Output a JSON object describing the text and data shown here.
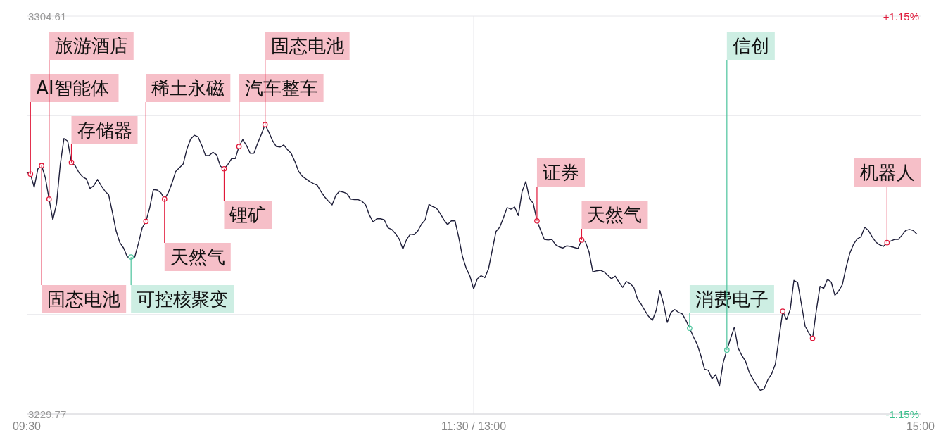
{
  "chart_data": {
    "type": "line",
    "categories": [
      "09:30",
      null,
      null,
      null,
      null,
      null,
      null,
      null,
      null,
      null,
      null,
      null,
      null,
      null,
      null,
      null,
      null,
      null,
      null,
      null,
      null,
      null,
      null,
      null,
      null,
      null,
      null,
      null,
      null,
      null,
      null,
      null,
      null,
      null,
      null,
      null,
      null,
      null,
      null,
      null,
      null,
      null,
      null,
      null,
      null,
      null,
      null,
      null,
      null,
      null,
      null,
      null,
      null,
      null,
      null,
      null,
      null,
      null,
      null,
      null,
      null,
      null,
      null,
      null,
      null,
      null,
      null,
      null,
      null,
      null,
      null,
      null,
      null,
      null,
      null,
      null,
      null,
      null,
      null,
      null,
      null,
      null,
      null,
      null,
      null,
      null,
      null,
      null,
      null,
      null,
      null,
      null,
      null,
      null,
      null,
      null,
      null,
      null,
      null,
      null,
      null,
      null,
      null,
      null,
      null,
      null,
      null,
      null,
      null,
      null,
      null,
      null,
      null,
      null,
      null,
      null,
      null,
      null,
      null,
      null,
      "11:30 / 13:00",
      null,
      null,
      null,
      null,
      null,
      null,
      null,
      null,
      null,
      null,
      null,
      null,
      null,
      null,
      null,
      null,
      null,
      null,
      null,
      null,
      null,
      null,
      null,
      null,
      null,
      null,
      null,
      null,
      null,
      null,
      null,
      null,
      null,
      null,
      null,
      null,
      null,
      null,
      null,
      null,
      null,
      null,
      null,
      null,
      null,
      null,
      null,
      null,
      null,
      null,
      null,
      null,
      null,
      null,
      null,
      null,
      null,
      null,
      null,
      null,
      null,
      null,
      null,
      null,
      null,
      null,
      null,
      null,
      null,
      null,
      null,
      null,
      null,
      null,
      null,
      null,
      null,
      null,
      null,
      null,
      null,
      null,
      null,
      null,
      null,
      null,
      null,
      null,
      null,
      null,
      null,
      null,
      null,
      null,
      null,
      null,
      null,
      null,
      null,
      null,
      null,
      null,
      null,
      null,
      null,
      null,
      null,
      null,
      null,
      null,
      null,
      null,
      null,
      null,
      null,
      null,
      null,
      null,
      null,
      "15:00"
    ],
    "ylim": [
      3229.77,
      3304.61
    ],
    "yticks": [
      3304.61,
      {
        "value": 3285.9,
        "label": null
      },
      {
        "value": 3267.19,
        "label": null
      },
      {
        "value": 3248.48,
        "label": null
      },
      3229.77
    ],
    "y2lim": [
      -1.15,
      1.15
    ],
    "y2ticks": [
      {
        "value": 1.15,
        "label": "+1.15%"
      },
      {
        "value": -1.15,
        "label": "-1.15%"
      }
    ],
    "grid": true,
    "series": [
      {
        "color": "#1f1f3a",
        "values": [
          3275.2,
          3274.9,
          3272.4,
          3275.9,
          3276.5,
          3274.2,
          3270.2,
          3266.3,
          3269.3,
          3276.7,
          3281.6,
          3281.1,
          3277.1,
          3276.5,
          3275.2,
          3274.4,
          3274.0,
          3272.2,
          3272.7,
          3273.9,
          3272.7,
          3271.7,
          3271.0,
          3267.7,
          3264.2,
          3262.0,
          3261.0,
          3259.3,
          3259.3,
          3259.3,
          3261.9,
          3264.8,
          3266.0,
          3268.5,
          3272.0,
          3271.9,
          3271.4,
          3270.2,
          3271.4,
          3273.2,
          3275.4,
          3276.1,
          3276.8,
          3279.6,
          3281.5,
          3282.2,
          3281.9,
          3280.3,
          3278.4,
          3278.4,
          3279.0,
          3278.5,
          3276.4,
          3275.9,
          3276.7,
          3277.8,
          3277.8,
          3280.1,
          3281.4,
          3280.3,
          3278.8,
          3278.8,
          3280.7,
          3282.4,
          3284.2,
          3282.8,
          3281.2,
          3280.1,
          3280.0,
          3280.4,
          3279.5,
          3278.8,
          3277.3,
          3275.4,
          3274.5,
          3274.0,
          3273.5,
          3273.1,
          3272.8,
          3271.6,
          3270.6,
          3269.8,
          3269.1,
          3270.9,
          3271.7,
          3271.5,
          3271.2,
          3270.2,
          3270.1,
          3270.1,
          3269.8,
          3269.1,
          3267.2,
          3265.9,
          3266.5,
          3266.5,
          3266.3,
          3264.8,
          3264.5,
          3263.7,
          3262.7,
          3260.8,
          3262.6,
          3263.6,
          3263.5,
          3264.2,
          3265.5,
          3266.3,
          3269.2,
          3268.8,
          3268.5,
          3267.5,
          3266.3,
          3265.4,
          3266.1,
          3266.1,
          3263.0,
          3259.4,
          3257.2,
          3255.7,
          3253.3,
          3255.2,
          3255.8,
          3255.4,
          3257.1,
          3260.6,
          3264.1,
          3264.9,
          3266.7,
          3268.6,
          3268.3,
          3268.7,
          3267.1,
          3271.6,
          3273.5,
          3270.3,
          3269.4,
          3266.1,
          3264.3,
          3262.6,
          3262.5,
          3262.6,
          3261.6,
          3261.2,
          3261.0,
          3261.4,
          3261.3,
          3261.1,
          3260.9,
          3262.5,
          3262.2,
          3260.2,
          3256.5,
          3256.7,
          3256.8,
          3256.5,
          3255.9,
          3255.2,
          3255.7,
          3254.6,
          3253.6,
          3254.7,
          3254.3,
          3253.6,
          3251.4,
          3250.4,
          3249.2,
          3248.1,
          3247.4,
          3249.2,
          3253.0,
          3250.5,
          3247.0,
          3248.9,
          3249.4,
          3248.9,
          3248.6,
          3247.4,
          3245.9,
          3244.3,
          3242.9,
          3240.8,
          3238.2,
          3238.0,
          3236.4,
          3237.2,
          3235.0,
          3239.4,
          3241.8,
          3244.0,
          3246.1,
          3242.2,
          3240.8,
          3239.7,
          3237.6,
          3236.3,
          3235.2,
          3234.2,
          3234.5,
          3236.2,
          3237.3,
          3239.1,
          3244.1,
          3249.1,
          3247.5,
          3249.4,
          3254.9,
          3254.5,
          3250.5,
          3246.3,
          3245.0,
          3244.0,
          3249.2,
          3253.8,
          3253.4,
          3255.1,
          3254.6,
          3252.1,
          3252.9,
          3254.1,
          3257.3,
          3260.0,
          3261.7,
          3262.7,
          3263.1,
          3264.9,
          3264.3,
          3263.1,
          3262.1,
          3261.6,
          3261.3,
          3262.0,
          3262.3,
          3262.6,
          3262.6,
          3263.4,
          3264.3,
          3264.5,
          3264.3,
          3263.6,
          null
        ]
      },
      {
        "type": "scatter",
        "color": "#e0193a",
        "marker": "circle",
        "values": [
          null,
          3274.9,
          null,
          null,
          3276.5,
          null,
          3270.2,
          null,
          null,
          null,
          null,
          null,
          3277.1,
          null,
          null,
          null,
          null,
          null,
          null,
          null,
          null,
          null,
          null,
          null,
          null,
          null,
          null,
          null,
          null,
          null,
          null,
          null,
          3266.0,
          null,
          null,
          null,
          null,
          3270.2,
          null,
          null,
          null,
          null,
          null,
          null,
          null,
          null,
          null,
          null,
          null,
          null,
          null,
          null,
          null,
          3275.9,
          null,
          null,
          null,
          3280.1,
          null,
          null,
          null,
          null,
          null,
          null,
          3284.2,
          null,
          null,
          null,
          null,
          null,
          null,
          null,
          null,
          null,
          null,
          null,
          null,
          null,
          null,
          null,
          null,
          null,
          null,
          null,
          null,
          null,
          null,
          null,
          null,
          null,
          null,
          null,
          null,
          null,
          null,
          null,
          null,
          null,
          null,
          null,
          null,
          null,
          null,
          null,
          null,
          null,
          null,
          null,
          null,
          null,
          null,
          null,
          null,
          null,
          null,
          null,
          null,
          null,
          null,
          null,
          null,
          null,
          null,
          null,
          null,
          null,
          null,
          null,
          null,
          null,
          null,
          null,
          null,
          null,
          null,
          null,
          null,
          3266.1,
          null,
          null,
          null,
          null,
          null,
          null,
          null,
          null,
          null,
          null,
          null,
          3262.5,
          null,
          null,
          null,
          null,
          null,
          null,
          null,
          null,
          null,
          null,
          null,
          null,
          null,
          null,
          null,
          null,
          null,
          null,
          null,
          null,
          null,
          null,
          null,
          null,
          null,
          null,
          null,
          null,
          null,
          null,
          null,
          null,
          null,
          null,
          null,
          null,
          null,
          null,
          null,
          null,
          null,
          null,
          null,
          null,
          null,
          null,
          null,
          null,
          null,
          null,
          null,
          null,
          null,
          null,
          null,
          null,
          null,
          null,
          null,
          null,
          null,
          null,
          null,
          null,
          null,
          null,
          null,
          null,
          null,
          null,
          null,
          null,
          null,
          null,
          null,
          null,
          null,
          null,
          null,
          null,
          null,
          3262.0,
          null,
          null,
          null,
          null,
          null,
          null,
          null,
          null,
          null
        ]
      },
      {
        "type": "scatter",
        "color": "#4cc49c",
        "marker": "circle",
        "values": [
          null,
          null,
          null,
          null,
          null,
          null,
          null,
          null,
          null,
          null,
          null,
          null,
          null,
          null,
          null,
          null,
          null,
          null,
          null,
          null,
          null,
          null,
          null,
          null,
          null,
          null,
          null,
          null,
          3259.3,
          null,
          null,
          null,
          null,
          null,
          null,
          null,
          null,
          null,
          null,
          null,
          null,
          null,
          null,
          null,
          null,
          null,
          null,
          null,
          null,
          null,
          null,
          null,
          null,
          null,
          null,
          null,
          null,
          null,
          null,
          null,
          null,
          null,
          null,
          null,
          null,
          null,
          null,
          null,
          null,
          null,
          null,
          null,
          null,
          null,
          null,
          null,
          null,
          null,
          null,
          null,
          null,
          null,
          null,
          null,
          null,
          null,
          null,
          null,
          null,
          null,
          null,
          null,
          null,
          null,
          null,
          null,
          null,
          null,
          null,
          null,
          null,
          null,
          null,
          null,
          null,
          null,
          null,
          null,
          null,
          null,
          null,
          null,
          null,
          null,
          null,
          null,
          null,
          null,
          null,
          null,
          null,
          null,
          null,
          null,
          null,
          null,
          null,
          null,
          null,
          null,
          null,
          null,
          null,
          null,
          null,
          null,
          null,
          null,
          null,
          null,
          null,
          null,
          null,
          null,
          null,
          null,
          null,
          null,
          null,
          null,
          null,
          null,
          null,
          null,
          null,
          null,
          null,
          null,
          null,
          null,
          null,
          null,
          null,
          null,
          null,
          null,
          null,
          null,
          null,
          null,
          null,
          null,
          null,
          null,
          null,
          null,
          null,
          null,
          3245.9,
          null,
          null,
          null,
          null,
          null,
          null,
          null,
          null,
          null,
          3241.8,
          null,
          null,
          null,
          null,
          null,
          null,
          null,
          null,
          null,
          null,
          null,
          null,
          null,
          null,
          null,
          null,
          null,
          null,
          null,
          null,
          null,
          null,
          null,
          null,
          null,
          null,
          null,
          null,
          null,
          null,
          null,
          null,
          null,
          null,
          null,
          null,
          null,
          null,
          null,
          null,
          null,
          null,
          null,
          null,
          null,
          null,
          null,
          null,
          null,
          null,
          null,
          null
        ]
      },
      {
        "type": "scatter",
        "color": "#e0193a",
        "marker": "circle",
        "values": [
          null,
          null,
          null,
          null,
          null,
          null,
          null,
          null,
          null,
          null,
          null,
          null,
          null,
          null,
          null,
          null,
          null,
          null,
          null,
          null,
          null,
          null,
          null,
          null,
          null,
          null,
          null,
          null,
          null,
          null,
          null,
          null,
          null,
          null,
          null,
          null,
          null,
          null,
          null,
          null,
          null,
          null,
          null,
          null,
          null,
          null,
          null,
          null,
          null,
          null,
          null,
          null,
          null,
          null,
          null,
          null,
          null,
          null,
          null,
          null,
          null,
          null,
          null,
          null,
          null,
          null,
          null,
          null,
          null,
          null,
          null,
          null,
          null,
          null,
          null,
          null,
          null,
          null,
          null,
          null,
          null,
          null,
          null,
          null,
          null,
          null,
          null,
          null,
          null,
          null,
          null,
          null,
          null,
          null,
          null,
          null,
          null,
          null,
          null,
          null,
          null,
          null,
          null,
          null,
          null,
          null,
          null,
          null,
          null,
          null,
          null,
          null,
          null,
          null,
          null,
          null,
          null,
          null,
          null,
          null,
          null,
          null,
          null,
          null,
          null,
          null,
          null,
          null,
          null,
          null,
          null,
          null,
          null,
          null,
          null,
          null,
          null,
          null,
          null,
          null,
          null,
          null,
          null,
          null,
          null,
          null,
          null,
          null,
          null,
          null,
          null,
          null,
          null,
          null,
          null,
          null,
          null,
          null,
          null,
          null,
          null,
          null,
          null,
          null,
          null,
          null,
          null,
          null,
          null,
          null,
          null,
          null,
          null,
          null,
          null,
          null,
          null,
          null,
          null,
          null,
          null,
          null,
          null,
          null,
          null,
          null,
          null,
          null,
          null,
          null,
          null,
          null,
          null,
          null,
          null,
          null,
          null,
          null,
          null,
          null,
          null,
          null,
          null,
          3249.1,
          null,
          null,
          null,
          null,
          null,
          null,
          null,
          3244.0,
          null,
          null,
          null,
          null,
          null,
          null,
          null,
          null,
          null,
          null,
          null,
          null,
          null,
          null,
          null,
          null,
          null,
          null,
          null,
          null,
          null,
          null,
          null,
          null,
          null,
          null,
          null,
          null,
          null
        ]
      }
    ],
    "annotations": [
      "AI智能体",
      "固态电池",
      "旅游酒店",
      "存储器",
      "稀土永磁",
      "天然气",
      "锂矿",
      "汽车整车",
      "固态电池",
      "证券",
      "天然气",
      "机器人",
      "可控核聚变",
      "消费电子",
      "信创"
    ]
  }
}
